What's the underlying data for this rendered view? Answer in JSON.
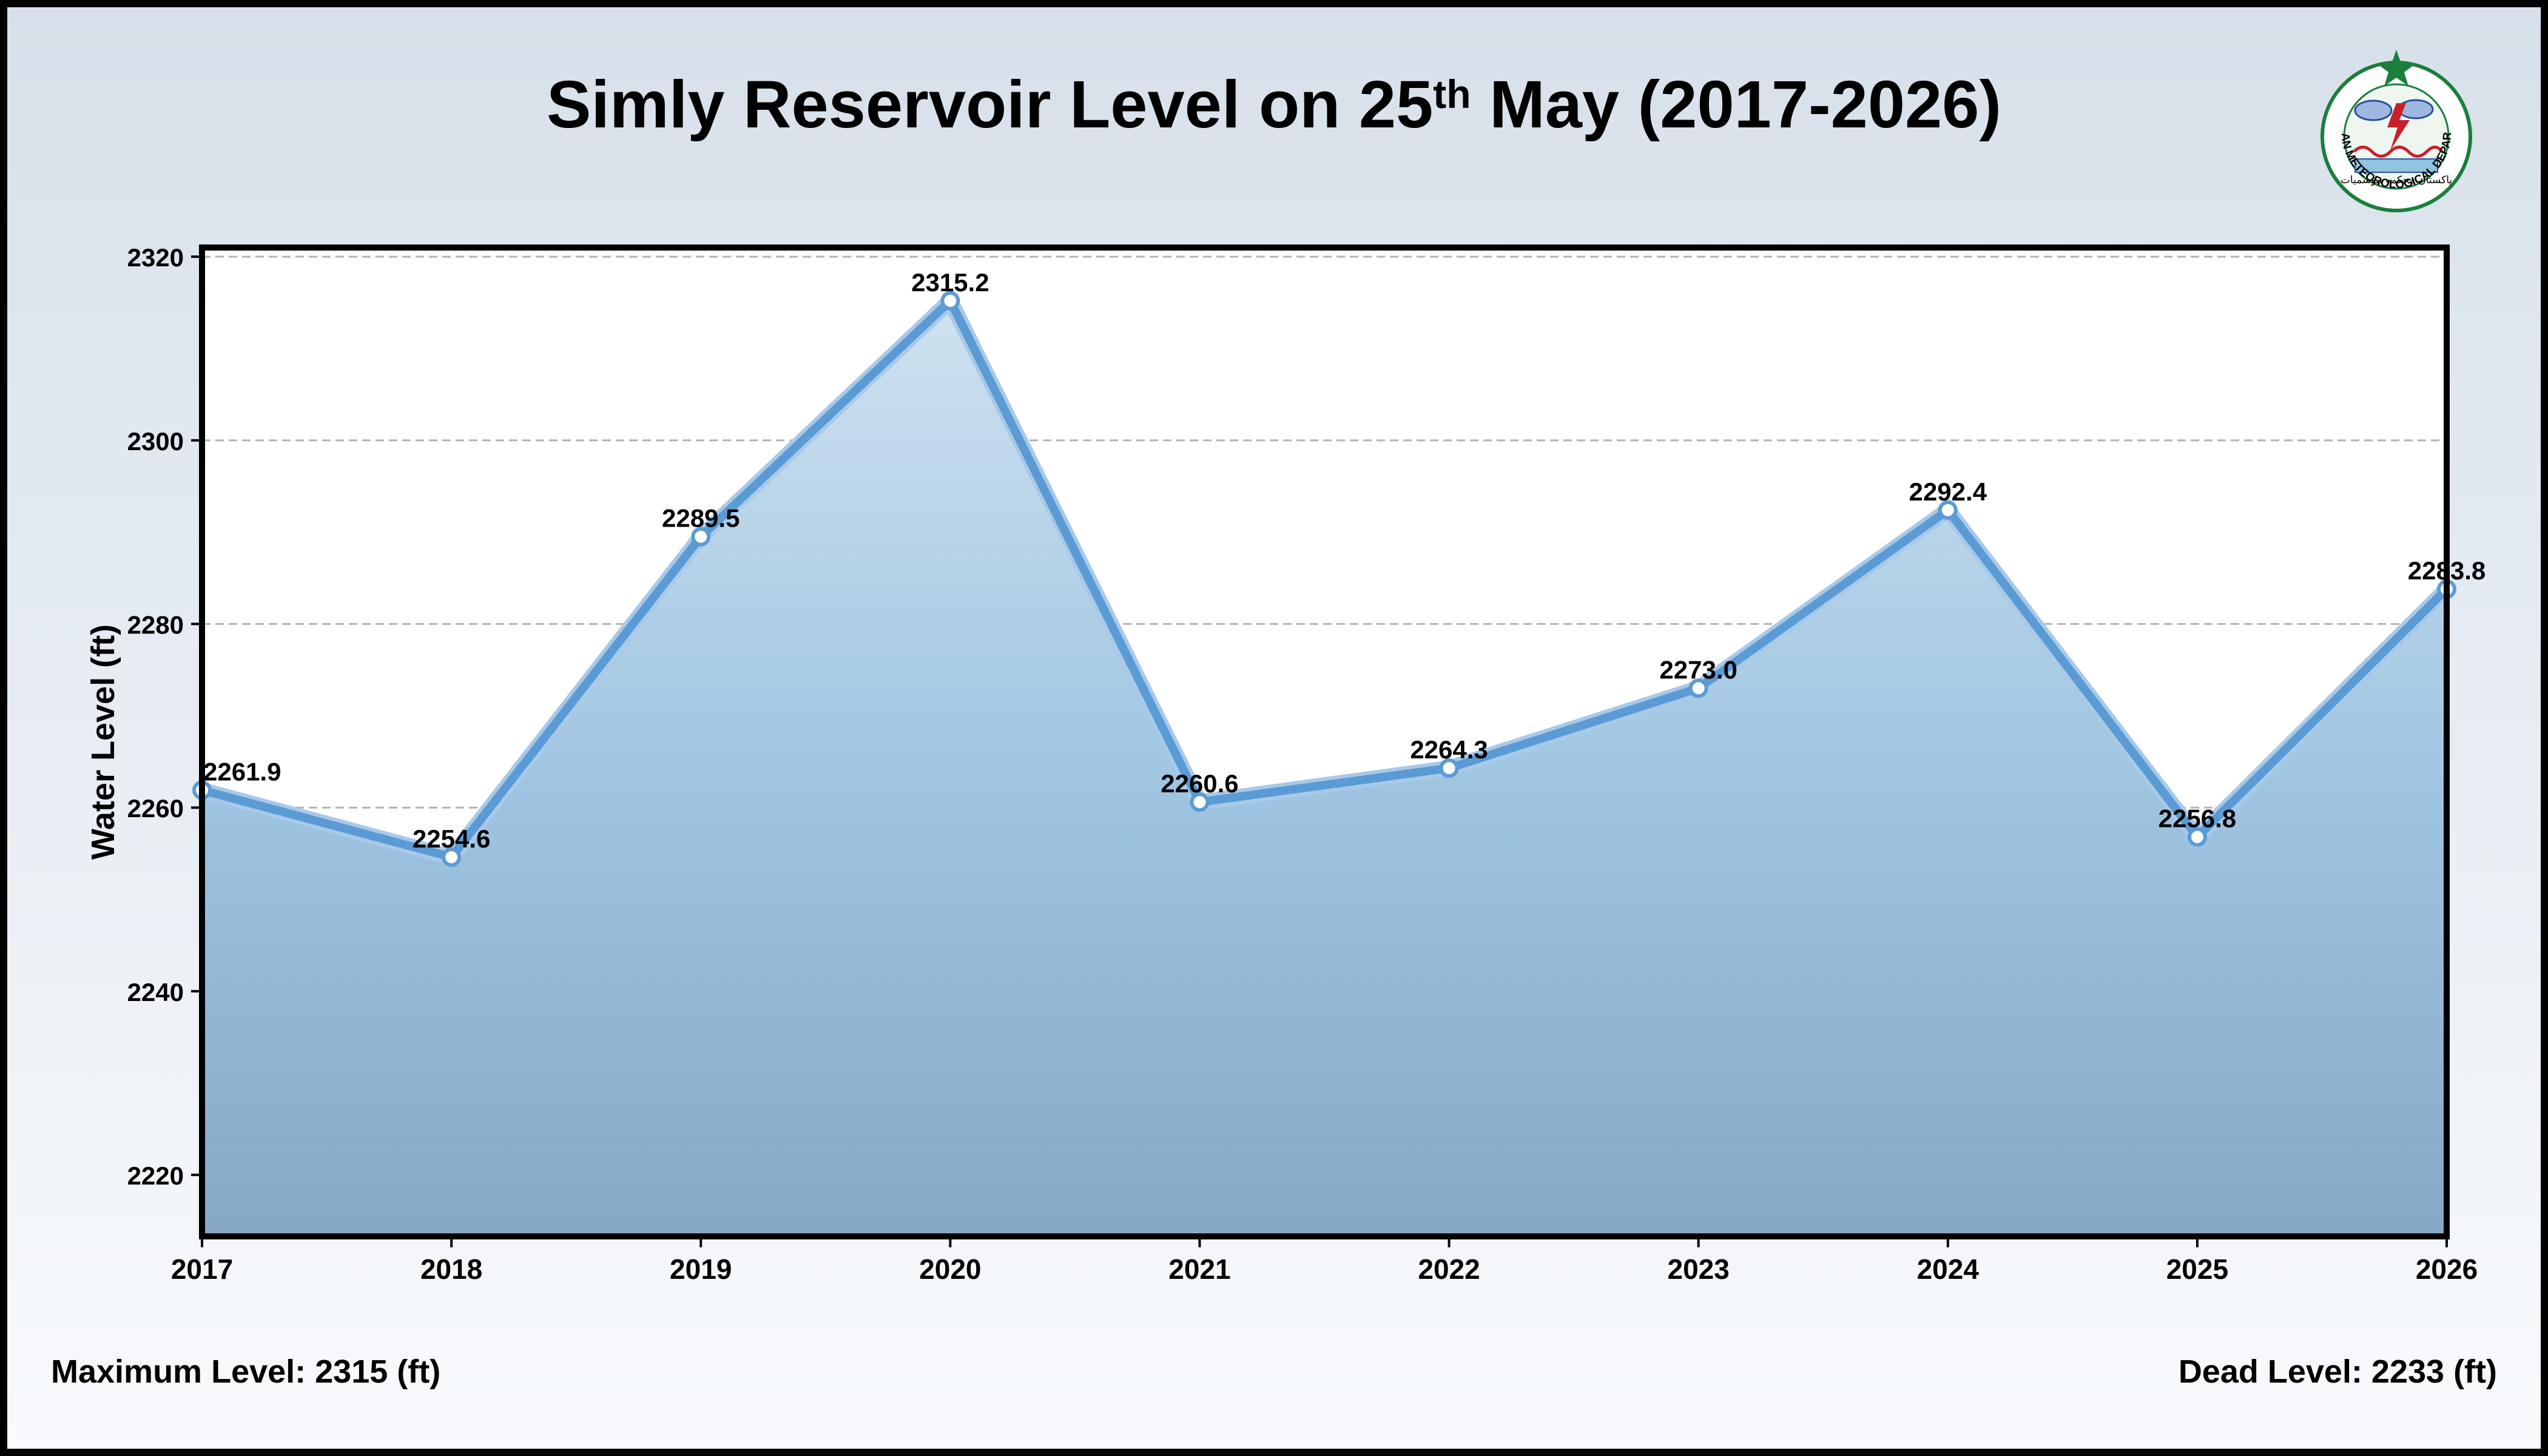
{
  "header": {
    "title_prefix": "Simly Reservoir Level on 25",
    "title_sup": "th",
    "title_suffix": " May (2017-2026)"
  },
  "logo": {
    "text": "PAKISTAN METEOROLOGICAL DEPARTMENT",
    "urdu": "پاکستان محکمہ موسمیات",
    "colors": {
      "green": "#1a7f3b",
      "red": "#c8202a",
      "blue": "#2a4fa0"
    }
  },
  "footer": {
    "max_level": "Maximum Level: 2315 (ft)",
    "dead_level": "Dead Level: 2233 (ft)"
  },
  "chart_data": {
    "type": "area",
    "title": "Simly Reservoir Level on 25th May (2017-2026)",
    "xlabel": "",
    "ylabel": "Water Level (ft)",
    "x": [
      2017,
      2018,
      2019,
      2020,
      2021,
      2022,
      2023,
      2024,
      2025,
      2026
    ],
    "values": [
      2261.9,
      2254.6,
      2289.5,
      2315.2,
      2260.6,
      2264.3,
      2273.0,
      2292.4,
      2256.8,
      2283.8
    ],
    "data_labels": [
      "2261.9",
      "2254.6",
      "2289.5",
      "2315.2",
      "2260.6",
      "2264.3",
      "2273.0",
      "2292.4",
      "2256.8",
      "2283.8"
    ],
    "ylim": [
      2213.3,
      2321.0
    ],
    "yticks": [
      2220,
      2240,
      2260,
      2280,
      2300,
      2320
    ],
    "grid": true,
    "legend": false,
    "colors": {
      "line": "#5b9bd5",
      "fill_top": "#cfe2f0",
      "fill_bottom": "#86a8c5",
      "grid": "#b4b4b4"
    }
  }
}
